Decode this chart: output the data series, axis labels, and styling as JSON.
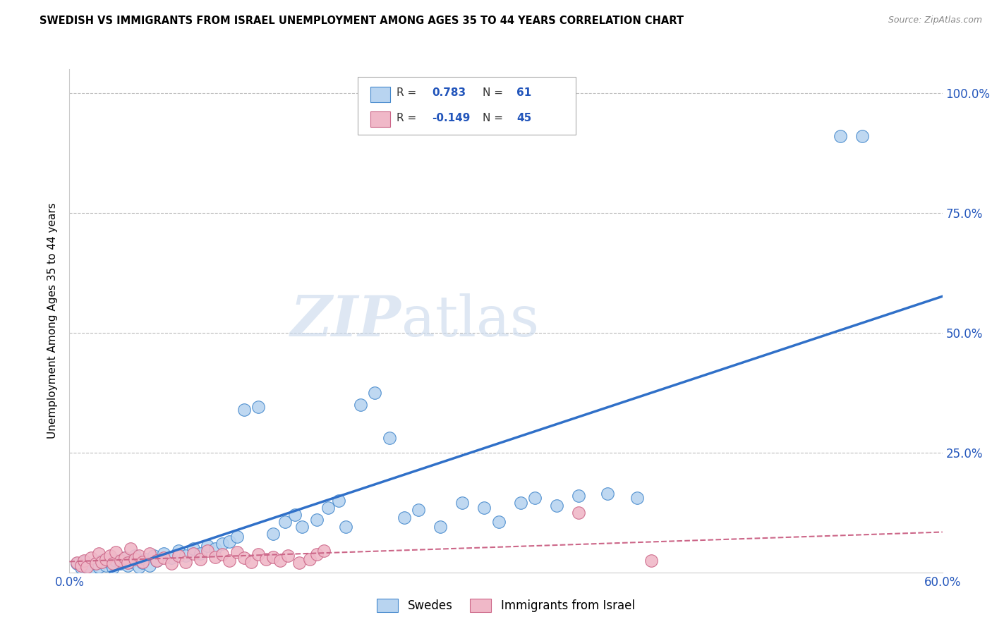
{
  "title": "SWEDISH VS IMMIGRANTS FROM ISRAEL UNEMPLOYMENT AMONG AGES 35 TO 44 YEARS CORRELATION CHART",
  "source": "Source: ZipAtlas.com",
  "ylabel": "Unemployment Among Ages 35 to 44 years",
  "xlim": [
    0.0,
    0.6
  ],
  "ylim": [
    0.0,
    1.05
  ],
  "xticks": [
    0.0,
    0.1,
    0.2,
    0.3,
    0.4,
    0.5,
    0.6
  ],
  "xticklabels": [
    "0.0%",
    "",
    "",
    "",
    "",
    "",
    "60.0%"
  ],
  "yticks": [
    0.0,
    0.25,
    0.5,
    0.75,
    1.0
  ],
  "yticklabels": [
    "",
    "25.0%",
    "50.0%",
    "75.0%",
    "100.0%"
  ],
  "blue_R": 0.783,
  "blue_N": 61,
  "pink_R": -0.149,
  "pink_N": 45,
  "blue_color": "#b8d4f0",
  "pink_color": "#f0b8c8",
  "blue_edge_color": "#4488cc",
  "pink_edge_color": "#cc6688",
  "blue_line_color": "#3070c8",
  "pink_line_color": "#cc6688",
  "grid_color": "#bbbbbb",
  "swedes_x": [
    0.005,
    0.008,
    0.01,
    0.012,
    0.015,
    0.018,
    0.02,
    0.022,
    0.025,
    0.028,
    0.03,
    0.032,
    0.035,
    0.038,
    0.04,
    0.042,
    0.045,
    0.048,
    0.05,
    0.052,
    0.055,
    0.058,
    0.06,
    0.065,
    0.07,
    0.075,
    0.08,
    0.085,
    0.09,
    0.095,
    0.1,
    0.105,
    0.11,
    0.115,
    0.12,
    0.13,
    0.14,
    0.148,
    0.155,
    0.16,
    0.17,
    0.178,
    0.185,
    0.19,
    0.2,
    0.21,
    0.22,
    0.23,
    0.24,
    0.255,
    0.27,
    0.285,
    0.295,
    0.31,
    0.32,
    0.335,
    0.35,
    0.37,
    0.39,
    0.53,
    0.545
  ],
  "swedes_y": [
    0.018,
    0.01,
    0.022,
    0.015,
    0.008,
    0.018,
    0.012,
    0.025,
    0.015,
    0.02,
    0.01,
    0.025,
    0.018,
    0.03,
    0.015,
    0.022,
    0.035,
    0.012,
    0.02,
    0.028,
    0.015,
    0.035,
    0.025,
    0.04,
    0.03,
    0.045,
    0.035,
    0.05,
    0.04,
    0.055,
    0.05,
    0.06,
    0.065,
    0.075,
    0.34,
    0.345,
    0.08,
    0.105,
    0.12,
    0.095,
    0.11,
    0.135,
    0.15,
    0.095,
    0.35,
    0.375,
    0.28,
    0.115,
    0.13,
    0.095,
    0.145,
    0.135,
    0.105,
    0.145,
    0.155,
    0.14,
    0.16,
    0.165,
    0.155,
    0.91,
    0.91
  ],
  "israel_x": [
    0.005,
    0.008,
    0.01,
    0.012,
    0.015,
    0.018,
    0.02,
    0.022,
    0.025,
    0.028,
    0.03,
    0.032,
    0.035,
    0.038,
    0.04,
    0.042,
    0.045,
    0.048,
    0.05,
    0.055,
    0.06,
    0.065,
    0.07,
    0.075,
    0.08,
    0.085,
    0.09,
    0.095,
    0.1,
    0.105,
    0.11,
    0.115,
    0.12,
    0.125,
    0.13,
    0.135,
    0.14,
    0.145,
    0.15,
    0.158,
    0.165,
    0.17,
    0.175,
    0.35,
    0.4
  ],
  "israel_y": [
    0.02,
    0.015,
    0.025,
    0.012,
    0.03,
    0.018,
    0.04,
    0.022,
    0.028,
    0.035,
    0.018,
    0.042,
    0.025,
    0.03,
    0.02,
    0.05,
    0.028,
    0.035,
    0.022,
    0.04,
    0.025,
    0.03,
    0.018,
    0.035,
    0.022,
    0.04,
    0.028,
    0.045,
    0.032,
    0.038,
    0.025,
    0.042,
    0.03,
    0.022,
    0.038,
    0.028,
    0.032,
    0.025,
    0.035,
    0.02,
    0.028,
    0.038,
    0.045,
    0.125,
    0.025
  ]
}
